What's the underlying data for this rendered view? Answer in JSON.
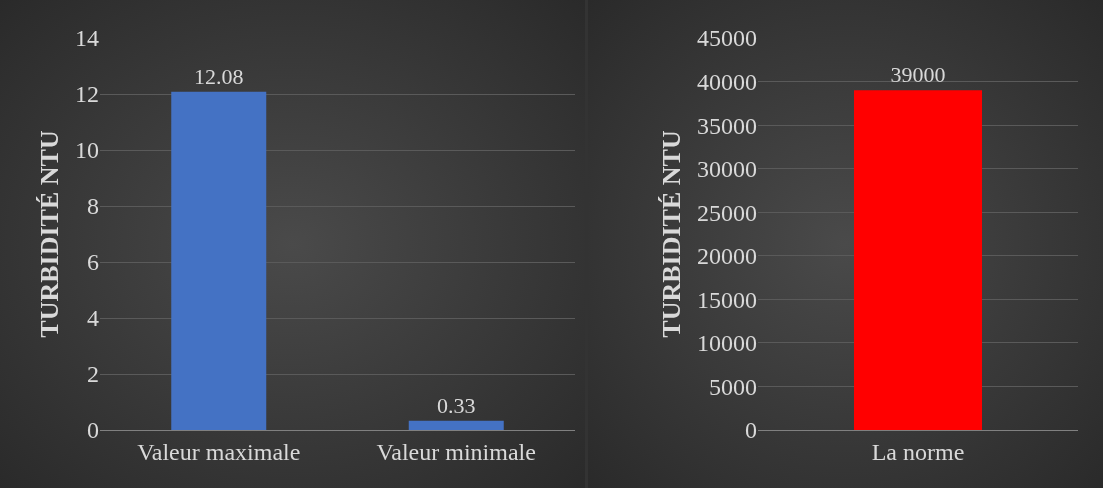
{
  "chart_data": [
    {
      "type": "bar",
      "ylabel": "TURBIDITÉ NTU",
      "categories": [
        "Valeur maximale",
        "Valeur minimale"
      ],
      "values": [
        12.08,
        0.33
      ],
      "color": "#4472c4",
      "ylim": [
        0,
        14
      ],
      "yticks": [
        0,
        2,
        4,
        6,
        8,
        10,
        12,
        14
      ],
      "grid": "y",
      "data_labels": true
    },
    {
      "type": "bar",
      "ylabel": "TURBIDITÉ NTU",
      "categories": [
        "La norme"
      ],
      "values": [
        39000
      ],
      "color": "#ff0000",
      "ylim": [
        0,
        45000
      ],
      "yticks": [
        0,
        5000,
        10000,
        15000,
        20000,
        25000,
        30000,
        35000,
        40000,
        45000
      ],
      "grid": "y",
      "data_labels": true
    }
  ]
}
